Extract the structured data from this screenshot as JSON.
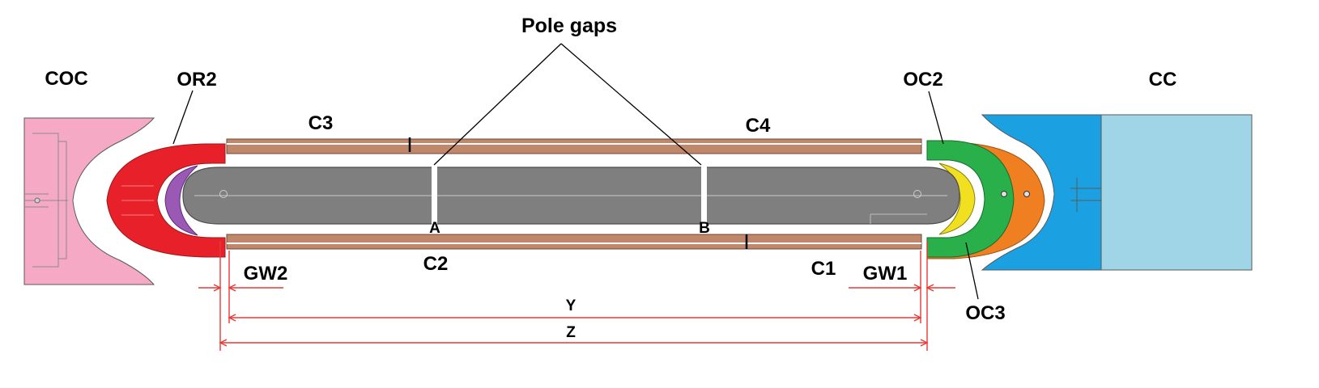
{
  "title": "Pole gaps",
  "labels": {
    "coc": "COC",
    "or2": "OR2",
    "c3": "C3",
    "c4": "C4",
    "oc2": "OC2",
    "cc": "CC",
    "c2": "C2",
    "c1": "C1",
    "gw2": "GW2",
    "gw1": "GW1",
    "oc3": "OC3",
    "gap_a": "A",
    "gap_b": "B",
    "dim_y": "Y",
    "dim_z": "Z"
  },
  "colors": {
    "coc_block": "#f5a9c5",
    "or2_coil": "#e8202a",
    "purple_insert": "#9b59b6",
    "coil_strip": "#c0876a",
    "oc2_coil": "#2ab04a",
    "oc3_coil": "#f07f22",
    "yellow_insert": "#f0e020",
    "cc_blue": "#1ba1e2",
    "cc_block": "#9fd5e6",
    "core_gray": "#7f7f7f",
    "dimension_red": "#e53935"
  }
}
